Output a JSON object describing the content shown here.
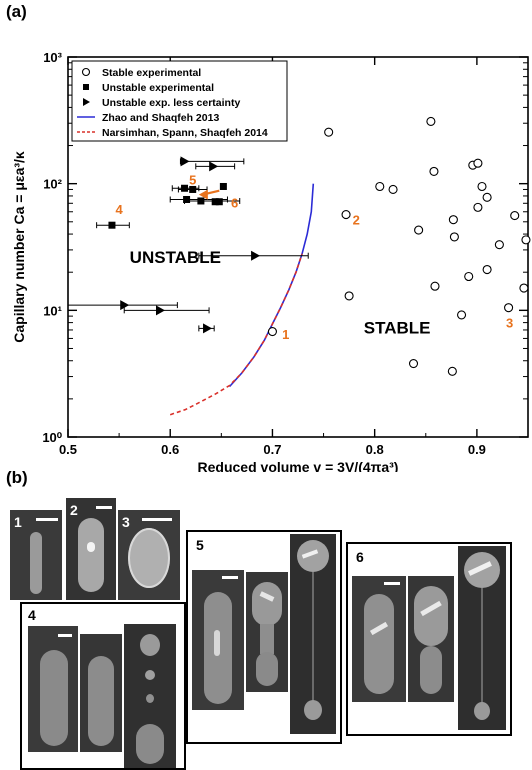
{
  "panel_a_label": "(a)",
  "panel_b_label": "(b)",
  "chart_data": {
    "type": "scatter",
    "xlabel": "Reduced volume v = 3V/(4πa³)",
    "ylabel": "Capillary number Ca = μεa³/κ",
    "xlim": [
      0.5,
      0.95
    ],
    "ylim": [
      1,
      1000
    ],
    "yscale": "log",
    "x_ticks": [
      "0.5",
      "0.6",
      "0.7",
      "0.8",
      "0.9"
    ],
    "y_ticks": [
      "10⁰",
      "10¹",
      "10²",
      "10³"
    ],
    "legend_position": "top-left",
    "legend": [
      "Stable experimental",
      "Unstable experimental",
      "Unstable exp. less certainty",
      "Zhao and Shaqfeh 2013",
      "Narsimhan, Spann, Shaqfeh 2014"
    ],
    "colors": {
      "zhao": "#2b2bd6",
      "narsimhan": "#d9302a",
      "annotation": "#e8731e"
    },
    "series": [
      {
        "name": "Stable experimental",
        "marker": "open-circle",
        "points": [
          [
            0.7,
            6.8
          ],
          [
            0.755,
            255
          ],
          [
            0.775,
            13
          ],
          [
            0.772,
            57
          ],
          [
            0.805,
            95
          ],
          [
            0.818,
            90
          ],
          [
            0.838,
            3.8
          ],
          [
            0.843,
            43
          ],
          [
            0.855,
            310
          ],
          [
            0.858,
            125
          ],
          [
            0.859,
            15.5
          ],
          [
            0.876,
            3.3
          ],
          [
            0.877,
            52
          ],
          [
            0.878,
            38
          ],
          [
            0.885,
            9.2
          ],
          [
            0.892,
            18.5
          ],
          [
            0.896,
            140
          ],
          [
            0.901,
            145
          ],
          [
            0.901,
            65
          ],
          [
            0.905,
            95
          ],
          [
            0.91,
            78
          ],
          [
            0.91,
            21
          ],
          [
            0.922,
            33
          ],
          [
            0.931,
            10.5
          ],
          [
            0.937,
            56
          ],
          [
            0.948,
            36
          ],
          [
            0.946,
            15
          ]
        ]
      },
      {
        "name": "Unstable experimental",
        "marker": "filled-square",
        "points": [
          [
            0.543,
            47
          ],
          [
            0.614,
            92
          ],
          [
            0.622,
            90
          ],
          [
            0.616,
            75
          ],
          [
            0.63,
            73
          ],
          [
            0.652,
            95
          ],
          [
            0.644,
            72
          ],
          [
            0.648,
            72
          ]
        ],
        "x_errors": [
          [
            0.528,
            0.56
          ],
          [
            0.602,
            0.628
          ],
          [
            0.608,
            0.636
          ],
          [
            0.6,
            0.656
          ],
          [
            0.614,
            0.668
          ],
          null,
          null,
          null
        ]
      },
      {
        "name": "Unstable exp. less certainty",
        "marker": "filled-triangle-right",
        "points": [
          [
            0.614,
            150
          ],
          [
            0.642,
            137
          ],
          [
            0.683,
            27
          ],
          [
            0.555,
            11
          ],
          [
            0.59,
            10
          ],
          [
            0.636,
            7.2
          ]
        ],
        "x_errors": [
          [
            0.61,
            0.672
          ],
          [
            0.625,
            0.663
          ],
          [
            0.628,
            0.735
          ],
          [
            0.5,
            0.607
          ],
          [
            0.555,
            0.638
          ],
          [
            0.628,
            0.643
          ]
        ]
      },
      {
        "name": "Zhao and Shaqfeh 2013",
        "line": "solid",
        "points": [
          [
            0.658,
            2.5
          ],
          [
            0.67,
            3.2
          ],
          [
            0.682,
            4.3
          ],
          [
            0.692,
            5.8
          ],
          [
            0.7,
            7.8
          ],
          [
            0.708,
            10.5
          ],
          [
            0.716,
            14.5
          ],
          [
            0.723,
            20
          ],
          [
            0.729,
            28
          ],
          [
            0.734,
            40
          ],
          [
            0.738,
            60
          ],
          [
            0.74,
            100
          ]
        ]
      },
      {
        "name": "Narsimhan, Spann, Shaqfeh 2014",
        "line": "dashed",
        "points": [
          [
            0.6,
            1.5
          ],
          [
            0.615,
            1.65
          ],
          [
            0.63,
            1.9
          ],
          [
            0.645,
            2.2
          ],
          [
            0.658,
            2.55
          ],
          [
            0.67,
            3.2
          ],
          [
            0.682,
            4.3
          ],
          [
            0.692,
            5.8
          ],
          [
            0.7,
            7.8
          ],
          [
            0.708,
            10.5
          ],
          [
            0.716,
            14.5
          ],
          [
            0.723,
            20
          ],
          [
            0.729,
            28
          ]
        ]
      }
    ],
    "region_labels": [
      "UNSTABLE",
      "STABLE"
    ],
    "point_labels": [
      {
        "text": "1",
        "x": 0.713,
        "y": 6.5
      },
      {
        "text": "2",
        "x": 0.782,
        "y": 52
      },
      {
        "text": "3",
        "x": 0.932,
        "y": 8.0
      },
      {
        "text": "4",
        "x": 0.55,
        "y": 63
      },
      {
        "text": "5",
        "x": 0.622,
        "y": 108
      },
      {
        "text": "6",
        "x": 0.663,
        "y": 71
      }
    ],
    "arrow": {
      "from": [
        0.648,
        88
      ],
      "to": [
        0.628,
        82
      ]
    }
  },
  "micrographs": {
    "frames": [
      {
        "label": "1"
      },
      {
        "label": "2"
      },
      {
        "label": "3"
      },
      {
        "label": "4"
      },
      {
        "label": "5"
      },
      {
        "label": "6"
      }
    ]
  }
}
